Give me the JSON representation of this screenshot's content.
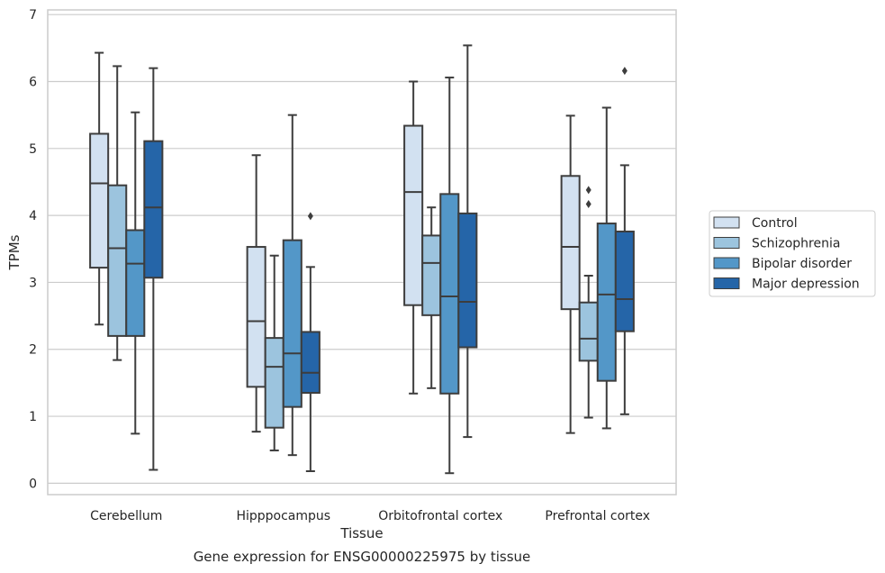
{
  "chart_data": {
    "type": "box",
    "caption": "Gene expression for ENSG00000225975 by tissue",
    "xlabel": "Tissue",
    "ylabel": "TPMs",
    "ylim": [
      -0.17,
      7.07
    ],
    "yticks": [
      0,
      1,
      2,
      3,
      4,
      5,
      6,
      7
    ],
    "grid": "horizontal",
    "legend_placement": "center-right",
    "categories": [
      "Cerebellum",
      "Hipppocampus",
      "Orbitofrontal cortex",
      "Prefrontal cortex"
    ],
    "series": [
      {
        "name": "Control",
        "color": "#d2e1f1",
        "boxes": [
          {
            "whislo": 2.37,
            "q1": 3.22,
            "med": 4.48,
            "q3": 5.22,
            "whishi": 6.43,
            "fliers": []
          },
          {
            "whislo": 0.77,
            "q1": 1.44,
            "med": 2.42,
            "q3": 3.53,
            "whishi": 4.9,
            "fliers": []
          },
          {
            "whislo": 1.34,
            "q1": 2.66,
            "med": 4.35,
            "q3": 5.34,
            "whishi": 6.0,
            "fliers": []
          },
          {
            "whislo": 0.75,
            "q1": 2.6,
            "med": 3.53,
            "q3": 4.59,
            "whishi": 5.49,
            "fliers": []
          }
        ]
      },
      {
        "name": "Schizophrenia",
        "color": "#9cc4de",
        "boxes": [
          {
            "whislo": 1.84,
            "q1": 2.2,
            "med": 3.51,
            "q3": 4.45,
            "whishi": 6.23,
            "fliers": []
          },
          {
            "whislo": 0.49,
            "q1": 0.83,
            "med": 1.74,
            "q3": 2.17,
            "whishi": 3.4,
            "fliers": []
          },
          {
            "whislo": 1.42,
            "q1": 2.51,
            "med": 3.29,
            "q3": 3.7,
            "whishi": 4.12,
            "fliers": []
          },
          {
            "whislo": 0.98,
            "q1": 1.83,
            "med": 2.16,
            "q3": 2.7,
            "whishi": 3.1,
            "fliers": [
              4.17,
              4.38
            ]
          }
        ]
      },
      {
        "name": "Bipolar disorder",
        "color": "#5397c8",
        "boxes": [
          {
            "whislo": 0.74,
            "q1": 2.2,
            "med": 3.28,
            "q3": 3.78,
            "whishi": 5.54,
            "fliers": []
          },
          {
            "whislo": 0.42,
            "q1": 1.14,
            "med": 1.94,
            "q3": 3.63,
            "whishi": 5.5,
            "fliers": []
          },
          {
            "whislo": 0.15,
            "q1": 1.34,
            "med": 2.79,
            "q3": 4.32,
            "whishi": 6.06,
            "fliers": []
          },
          {
            "whislo": 0.82,
            "q1": 1.53,
            "med": 2.82,
            "q3": 3.88,
            "whishi": 5.61,
            "fliers": []
          }
        ]
      },
      {
        "name": "Major depression",
        "color": "#2565a8",
        "boxes": [
          {
            "whislo": 0.2,
            "q1": 3.07,
            "med": 4.12,
            "q3": 5.11,
            "whishi": 6.2,
            "fliers": []
          },
          {
            "whislo": 0.18,
            "q1": 1.35,
            "med": 1.65,
            "q3": 2.26,
            "whishi": 3.23,
            "fliers": [
              3.99
            ]
          },
          {
            "whislo": 0.69,
            "q1": 2.03,
            "med": 2.71,
            "q3": 4.03,
            "whishi": 6.54,
            "fliers": []
          },
          {
            "whislo": 1.03,
            "q1": 2.27,
            "med": 2.75,
            "q3": 3.76,
            "whishi": 4.75,
            "fliers": [
              6.16
            ]
          }
        ]
      }
    ]
  }
}
